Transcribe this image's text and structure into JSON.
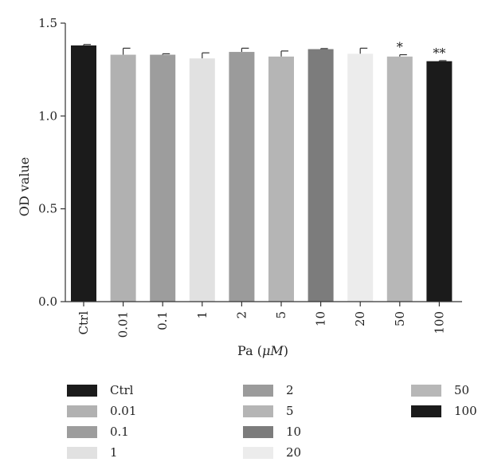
{
  "chart_data": {
    "type": "bar",
    "title": "",
    "xlabel": "Pa (",
    "xlabel_unit": "μM",
    "xlabel_close": ")",
    "ylabel": "OD value",
    "ylim": [
      0,
      1.5
    ],
    "yticks": [
      "0.0",
      "0.5",
      "1.0",
      "1.5"
    ],
    "grid": false,
    "legend_position": "bottom",
    "categories": [
      "Ctrl",
      "0.01",
      "0.1",
      "1",
      "2",
      "5",
      "10",
      "20",
      "50",
      "100"
    ],
    "values": [
      1.38,
      1.33,
      1.33,
      1.31,
      1.345,
      1.32,
      1.36,
      1.335,
      1.32,
      1.295
    ],
    "errors": [
      0.005,
      0.035,
      0.005,
      0.03,
      0.02,
      0.03,
      0.003,
      0.03,
      0.01,
      0.003
    ],
    "colors": [
      "#1b1b1b",
      "#b1b1b1",
      "#9d9d9d",
      "#e1e1e1",
      "#9b9b9b",
      "#b5b5b5",
      "#7c7c7c",
      "#ececec",
      "#b7b7b7",
      "#1b1b1b"
    ],
    "annotations": [
      "",
      "",
      "",
      "",
      "",
      "",
      "",
      "",
      "*",
      "**"
    ]
  },
  "legend": {
    "columns": [
      [
        "Ctrl",
        "0.01",
        "0.1",
        "1"
      ],
      [
        "2",
        "5",
        "10",
        "20"
      ],
      [
        "50",
        "100"
      ]
    ]
  }
}
